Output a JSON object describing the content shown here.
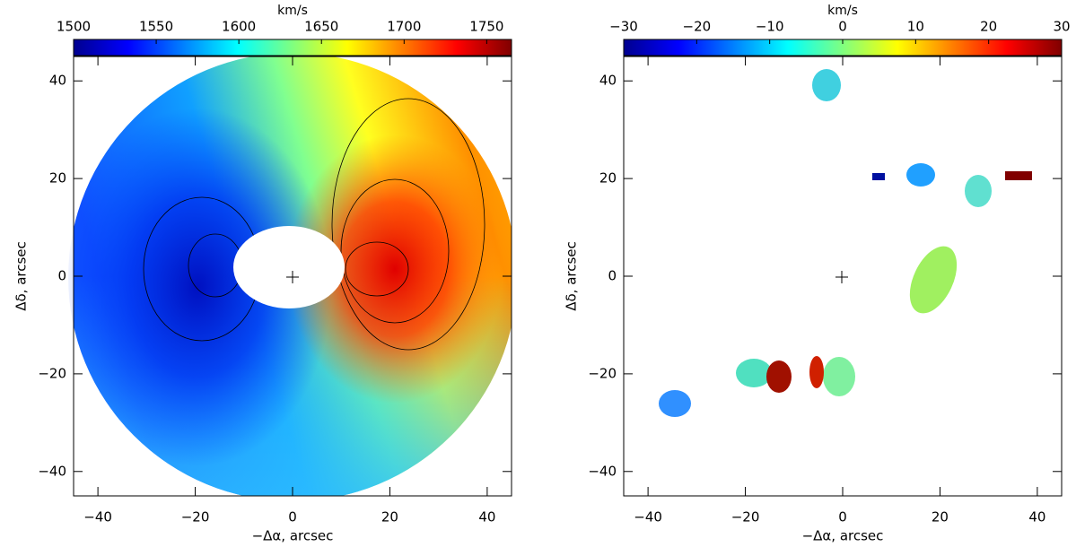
{
  "chart_data": [
    {
      "type": "image",
      "colorbar": {
        "label": "km/s",
        "lim": [
          1500,
          1765
        ],
        "ticks": [
          1500,
          1550,
          1600,
          1650,
          1700,
          1750
        ]
      },
      "xlabel": "−Δα, arcsec",
      "ylabel": "Δδ, arcsec",
      "xlim": [
        -45,
        45
      ],
      "ylim": [
        -45,
        45
      ],
      "xticks": [
        {
          "value": -40,
          "label": "−40"
        },
        {
          "value": -20,
          "label": "−20"
        },
        0,
        20,
        40
      ],
      "yticks": [
        {
          "value": -40,
          "label": "−40"
        },
        {
          "value": -20,
          "label": "−20"
        },
        0,
        20,
        40
      ]
    },
    {
      "type": "image",
      "colorbar": {
        "label": "km/s",
        "lim": [
          -30,
          30
        ],
        "ticks": [
          {
            "value": -30,
            "label": "−30"
          },
          {
            "value": -20,
            "label": "−20"
          },
          {
            "value": -10,
            "label": "−10"
          },
          0,
          10,
          20,
          30
        ]
      },
      "xlabel": "−Δα, arcsec",
      "ylabel": "Δδ, arcsec",
      "xlim": [
        -45,
        45
      ],
      "ylim": [
        -45,
        45
      ],
      "xticks": [
        {
          "value": -40,
          "label": "−40"
        },
        {
          "value": -20,
          "label": "−20"
        },
        0,
        20,
        40
      ],
      "yticks": [
        {
          "value": -40,
          "label": "−40"
        },
        {
          "value": -20,
          "label": "−20"
        },
        0,
        20,
        40
      ]
    }
  ]
}
